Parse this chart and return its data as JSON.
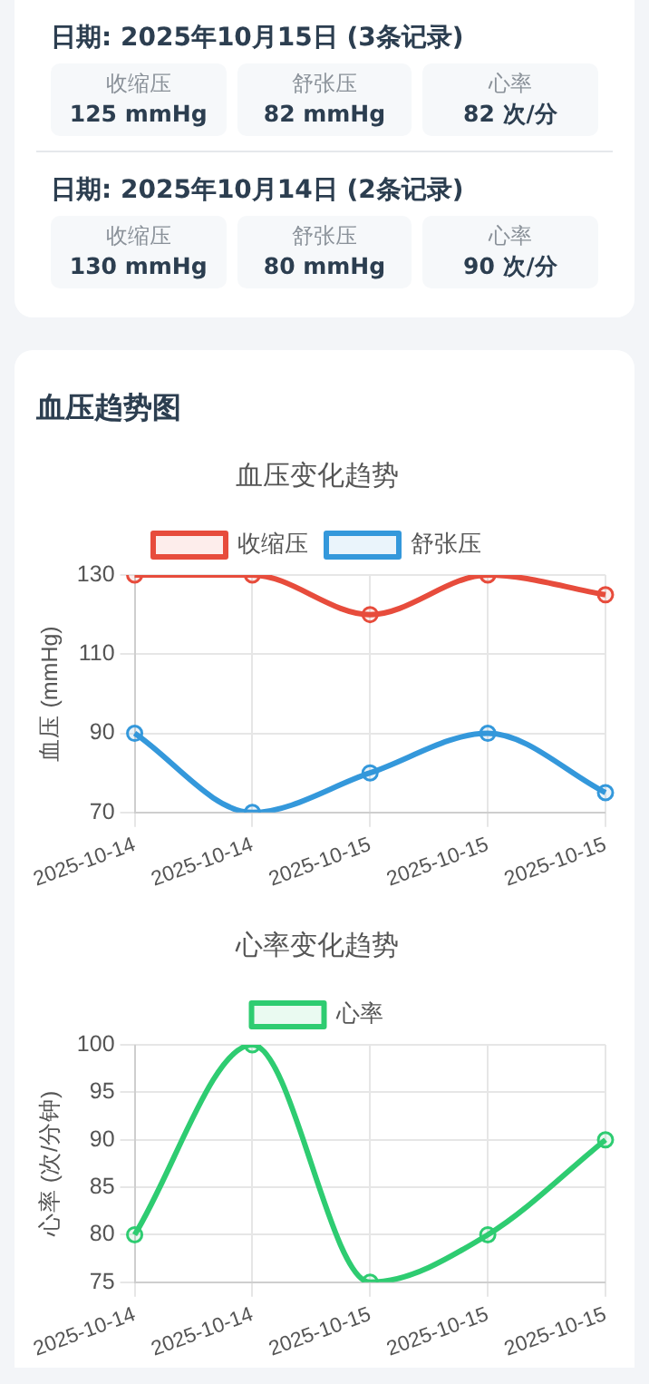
{
  "chart_data": [
    {
      "type": "other",
      "annotations": [
        "日期: 2025年10月15日 (3条记录)",
        "收缩压",
        "125 mmHg",
        "舒张压",
        "82 mmHg",
        "心率",
        "82 次/分",
        "日期: 2025年10月14日 (2条记录)",
        "收缩压",
        "130 mmHg",
        "舒张压",
        "80 mmHg",
        "心率",
        "90 次/分"
      ]
    },
    {
      "type": "other",
      "title": "血压趋势图"
    },
    {
      "type": "line",
      "title": "血压变化趋势",
      "ylabel": "血压 (mmHg)",
      "categories": [
        "2025-10-14",
        "2025-10-14",
        "2025-10-15",
        "2025-10-15",
        "2025-10-15"
      ],
      "series": [
        {
          "name": "收缩压",
          "color": "#e74c3c",
          "values": [
            130,
            130,
            120,
            130,
            125
          ]
        },
        {
          "name": "舒张压",
          "color": "#3498db",
          "values": [
            90,
            70,
            80,
            90,
            75
          ]
        }
      ],
      "ylim": [
        70,
        130
      ],
      "yticks": [
        70,
        90,
        110,
        130
      ],
      "grid": true,
      "legend": "top",
      "marker": "circle",
      "line_style": "solid"
    },
    {
      "type": "line",
      "title": "心率变化趋势",
      "ylabel": "心率 (次/分钟)",
      "categories": [
        "2025-10-14",
        "2025-10-14",
        "2025-10-15",
        "2025-10-15",
        "2025-10-15"
      ],
      "series": [
        {
          "name": "心率",
          "color": "#2ecc71",
          "values": [
            80,
            100,
            75,
            80,
            90
          ]
        }
      ],
      "ylim": [
        75,
        100
      ],
      "yticks": [
        75,
        80,
        85,
        90,
        95,
        100
      ],
      "grid": true,
      "legend": "top",
      "marker": "circle",
      "line_style": "solid"
    }
  ]
}
